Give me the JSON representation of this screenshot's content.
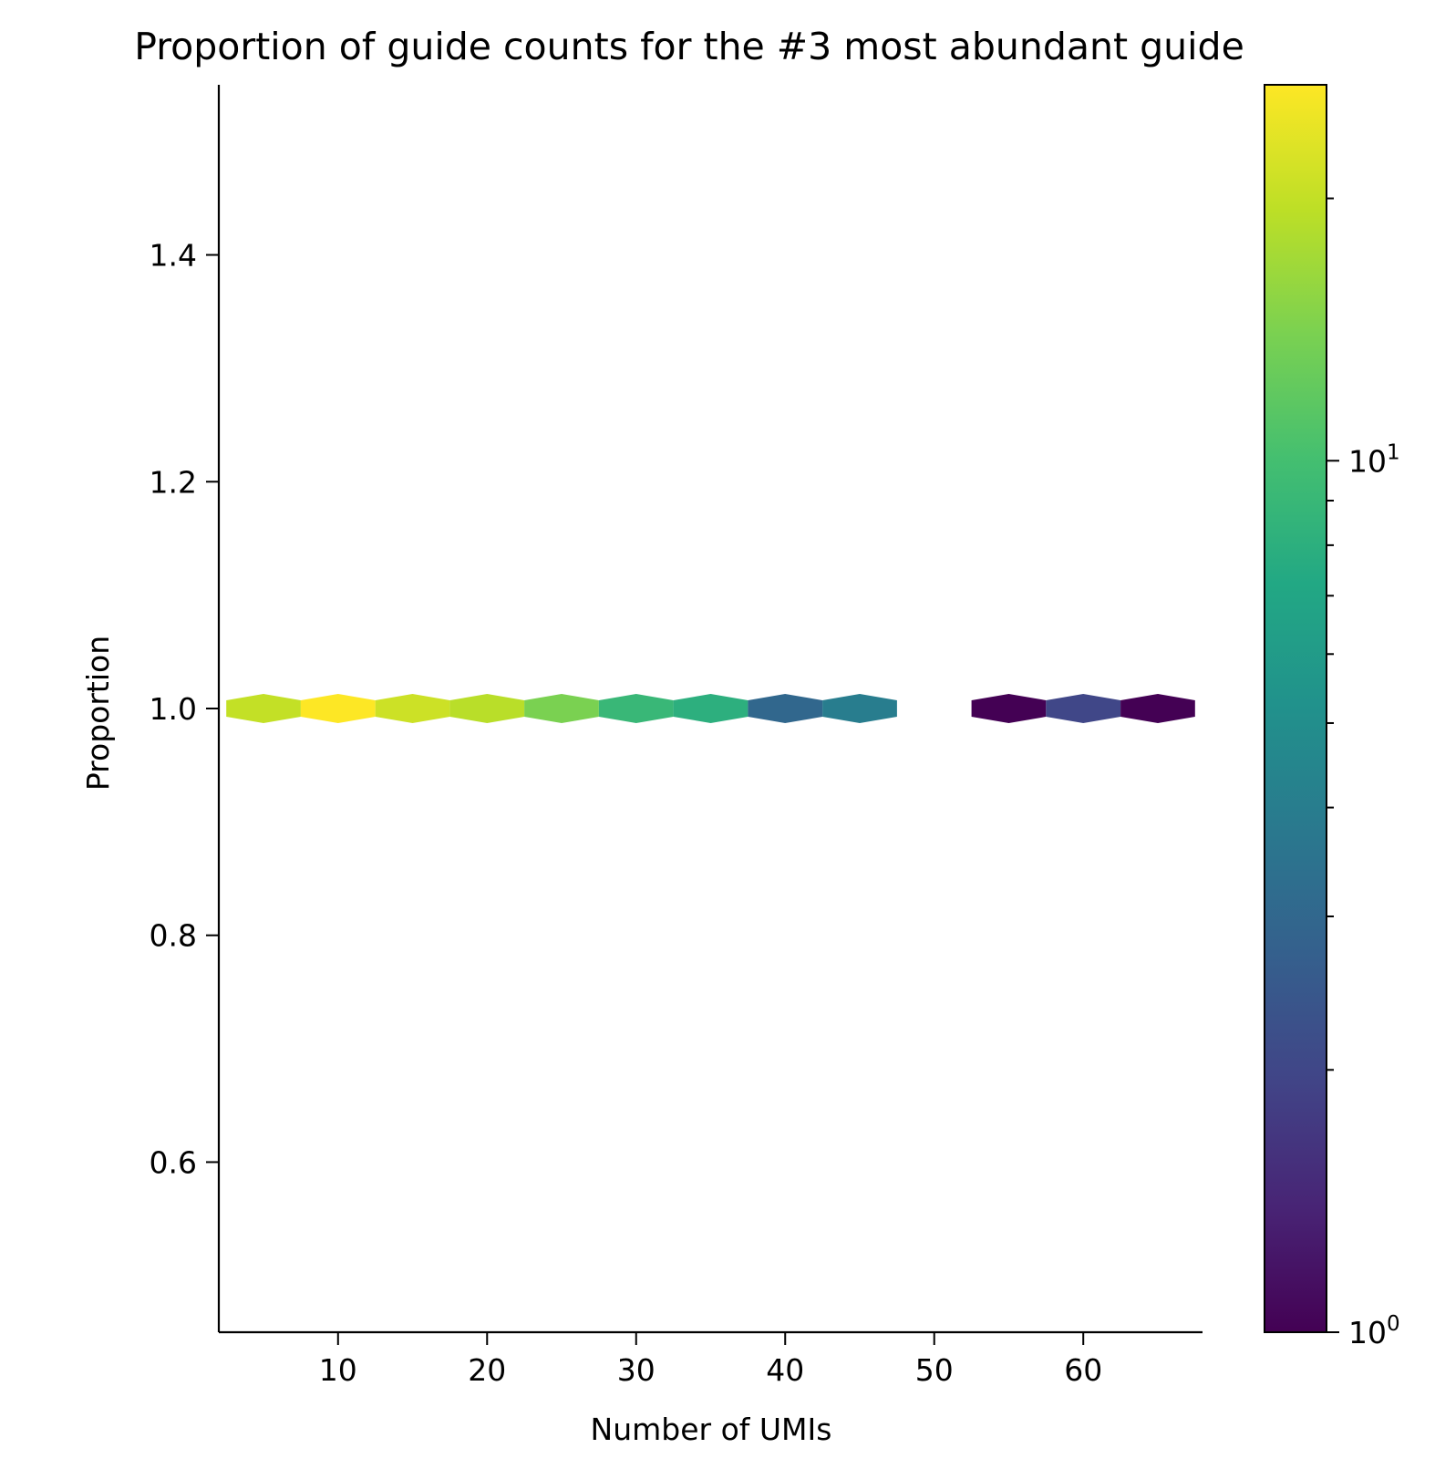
{
  "chart_data": {
    "type": "hexbin",
    "title": "Proportion of guide counts for the #3 most abundant guide",
    "xlabel": "Number of UMIs",
    "ylabel": "Proportion",
    "xlim": [
      2,
      68
    ],
    "ylim": [
      0.45,
      1.55
    ],
    "xticks": [
      10,
      20,
      30,
      40,
      50,
      60
    ],
    "yticks": [
      0.6,
      0.8,
      1.0,
      1.2,
      1.4
    ],
    "xtick_labels": [
      "10",
      "20",
      "30",
      "40",
      "50",
      "60"
    ],
    "ytick_labels": [
      "0.6",
      "0.8",
      "1.0",
      "1.2",
      "1.4"
    ],
    "colormap": "viridis",
    "colorbar": {
      "scale": "log",
      "range": [
        1,
        27
      ],
      "tick_labels": [
        {
          "base": "10",
          "exp": "0",
          "value": 1
        },
        {
          "base": "10",
          "exp": "1",
          "value": 10
        }
      ]
    },
    "bins": [
      {
        "x": 5,
        "y": 1.0,
        "count": 20
      },
      {
        "x": 10,
        "y": 1.0,
        "count": 27
      },
      {
        "x": 15,
        "y": 1.0,
        "count": 21
      },
      {
        "x": 20,
        "y": 1.0,
        "count": 19
      },
      {
        "x": 25,
        "y": 1.0,
        "count": 14
      },
      {
        "x": 30,
        "y": 1.0,
        "count": 9
      },
      {
        "x": 35,
        "y": 1.0,
        "count": 8
      },
      {
        "x": 40,
        "y": 1.0,
        "count": 3
      },
      {
        "x": 45,
        "y": 1.0,
        "count": 4
      },
      {
        "x": 55,
        "y": 1.0,
        "count": 1
      },
      {
        "x": 60,
        "y": 1.0,
        "count": 2
      },
      {
        "x": 65,
        "y": 1.0,
        "count": 1
      }
    ],
    "grid": false
  }
}
